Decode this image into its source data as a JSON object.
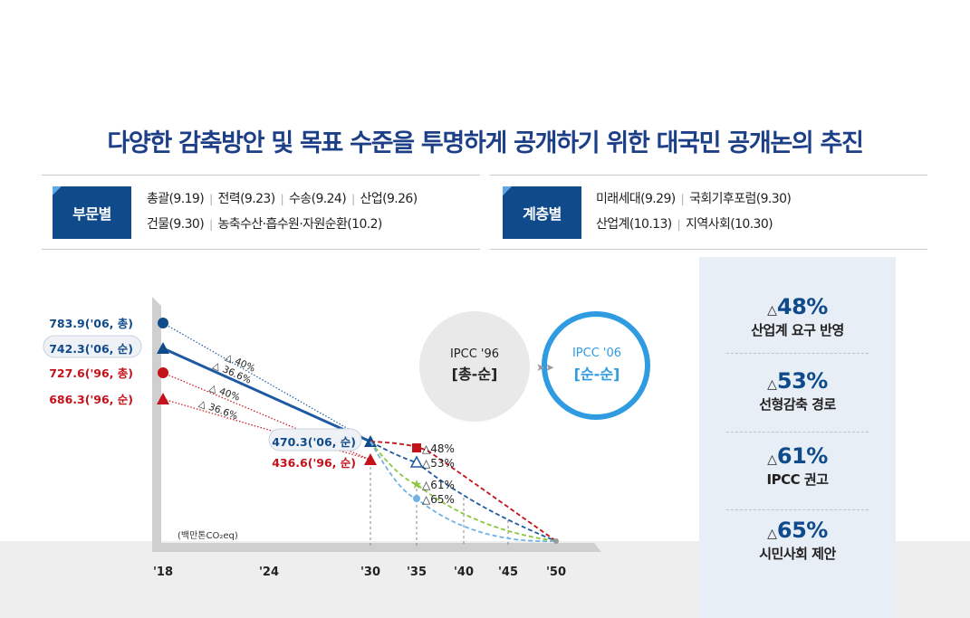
{
  "title": "다양한 감축방안 및 목표 수준을 투명하게 공개하기 위한 대국민 공개논의 추진",
  "sector": {
    "label": "부문별",
    "row1": [
      "총괄(9.19)",
      "전력(9.23)",
      "수송(9.24)",
      "산업(9.26)"
    ],
    "row2": [
      "건물(9.30)",
      "농축수산·흡수원·자원순환(10.2)"
    ]
  },
  "group": {
    "label": "계층별",
    "row1": [
      "미래세대(9.29)",
      "국회기후포럼(9.30)"
    ],
    "row2": [
      "산업계(10.13)",
      "지역사회(10.30)"
    ]
  },
  "ipcc": {
    "left_line1": "IPCC '96",
    "left_line2": "[총-순]",
    "right_line1": "IPCC '06",
    "right_line2": "[순-순]",
    "arrow": "➤➤"
  },
  "goals": [
    {
      "pct": "48%",
      "desc": "산업계 요구 반영"
    },
    {
      "pct": "53%",
      "desc": "선형감축 경로"
    },
    {
      "pct": "61%",
      "desc": "IPCC 권고"
    },
    {
      "pct": "65%",
      "desc": "시민사회 제안"
    }
  ],
  "colors": {
    "navy": "#0f4a8a",
    "dark_blue": "#1c3f87",
    "blue_series": "#1d5aa3",
    "red_series": "#c4121a",
    "green_series": "#8dc63f",
    "light_blue_series": "#6fb3e6",
    "ipcc_ring": "#2f9be0"
  },
  "chart_data": {
    "type": "line",
    "unit_label": "(백만톤CO₂eq)",
    "x_ticks": [
      "'18",
      "'24",
      "'30",
      "'35",
      "'40",
      "'45",
      "'50"
    ],
    "x_years": [
      2018,
      2024,
      2030,
      2035,
      2040,
      2045,
      2050
    ],
    "baselines": [
      {
        "label": "783.9('06, 총)",
        "year": 2018,
        "value": 783.9,
        "marker": "circle",
        "color": "#0f4a8a"
      },
      {
        "label": "742.3('06, 순)",
        "year": 2018,
        "value": 742.3,
        "marker": "triangle",
        "color": "#0f4a8a"
      },
      {
        "label": "727.6('96, 총)",
        "year": 2018,
        "value": 727.6,
        "marker": "circle",
        "color": "#c4121a"
      },
      {
        "label": "686.3('96, 순)",
        "year": 2018,
        "value": 686.3,
        "marker": "triangle",
        "color": "#c4121a"
      }
    ],
    "targets_2030": [
      {
        "label": "470.3('06, 순)",
        "year": 2030,
        "value": 470.3,
        "color": "#0f4a8a"
      },
      {
        "label": "436.6('96, 순)",
        "year": 2030,
        "value": 436.6,
        "color": "#c4121a"
      }
    ],
    "reduction_labels": [
      "△ 40%",
      "△ 36.6%",
      "△ 40%",
      "△ 36.6%"
    ],
    "pathways_2035": [
      {
        "label": "△48%",
        "color": "#c4121a",
        "marker": "square"
      },
      {
        "label": "△53%",
        "color": "#1d5aa3",
        "marker": "triangle-open"
      },
      {
        "label": "△61%",
        "color": "#8dc63f",
        "marker": "star"
      },
      {
        "label": "△65%",
        "color": "#6fb3e6",
        "marker": "circle"
      }
    ],
    "endpoint_year": 2050
  }
}
